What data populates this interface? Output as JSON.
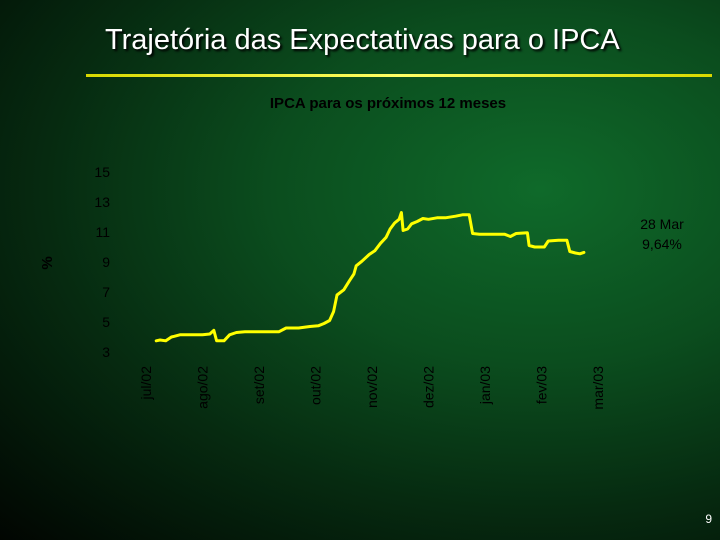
{
  "slide": {
    "title": "Trajetória das Expectativas para o IPCA",
    "page_number": "9"
  },
  "chart_data": {
    "type": "line",
    "title": "IPCA para os próximos 12 meses",
    "ylabel": "%",
    "xlabel": "",
    "ylim": [
      3,
      15
    ],
    "yticks": [
      15,
      13,
      11,
      9,
      7,
      5,
      3
    ],
    "xticks": [
      "jul/02",
      "ago/02",
      "set/02",
      "out/02",
      "nov/02",
      "dez/02",
      "jan/03",
      "fev/03",
      "mar/03"
    ],
    "series_color": "#ffff00",
    "annotation": {
      "line1": "28 Mar",
      "line2": "9,64%"
    },
    "series": [
      {
        "points": [
          [
            0.18,
            3.75
          ],
          [
            0.25,
            3.8
          ],
          [
            0.35,
            3.75
          ],
          [
            0.45,
            4.0
          ],
          [
            0.5,
            4.05
          ],
          [
            0.6,
            4.15
          ],
          [
            0.8,
            4.15
          ],
          [
            1.0,
            4.15
          ],
          [
            1.13,
            4.2
          ],
          [
            1.2,
            4.45
          ],
          [
            1.25,
            3.75
          ],
          [
            1.38,
            3.75
          ],
          [
            1.48,
            4.15
          ],
          [
            1.6,
            4.3
          ],
          [
            1.75,
            4.35
          ],
          [
            2.0,
            4.35
          ],
          [
            2.35,
            4.35
          ],
          [
            2.48,
            4.6
          ],
          [
            2.7,
            4.6
          ],
          [
            2.9,
            4.7
          ],
          [
            3.05,
            4.75
          ],
          [
            3.15,
            4.9
          ],
          [
            3.25,
            5.1
          ],
          [
            3.32,
            5.7
          ],
          [
            3.38,
            6.8
          ],
          [
            3.5,
            7.15
          ],
          [
            3.6,
            7.75
          ],
          [
            3.68,
            8.2
          ],
          [
            3.72,
            8.75
          ],
          [
            3.82,
            9.05
          ],
          [
            3.95,
            9.5
          ],
          [
            4.05,
            9.75
          ],
          [
            4.15,
            10.25
          ],
          [
            4.25,
            10.65
          ],
          [
            4.32,
            11.2
          ],
          [
            4.4,
            11.6
          ],
          [
            4.48,
            11.85
          ],
          [
            4.52,
            12.3
          ],
          [
            4.55,
            11.1
          ],
          [
            4.63,
            11.2
          ],
          [
            4.7,
            11.55
          ],
          [
            4.8,
            11.7
          ],
          [
            4.9,
            11.9
          ],
          [
            5.0,
            11.85
          ],
          [
            5.15,
            11.95
          ],
          [
            5.3,
            11.95
          ],
          [
            5.48,
            12.05
          ],
          [
            5.6,
            12.15
          ],
          [
            5.72,
            12.15
          ],
          [
            5.78,
            10.9
          ],
          [
            5.9,
            10.85
          ],
          [
            6.1,
            10.85
          ],
          [
            6.35,
            10.85
          ],
          [
            6.45,
            10.7
          ],
          [
            6.55,
            10.9
          ],
          [
            6.75,
            10.95
          ],
          [
            6.78,
            10.1
          ],
          [
            6.88,
            10.0
          ],
          [
            7.05,
            10.0
          ],
          [
            7.12,
            10.4
          ],
          [
            7.3,
            10.45
          ],
          [
            7.45,
            10.45
          ],
          [
            7.5,
            9.7
          ],
          [
            7.6,
            9.6
          ],
          [
            7.68,
            9.55
          ],
          [
            7.75,
            9.64
          ]
        ]
      }
    ]
  }
}
